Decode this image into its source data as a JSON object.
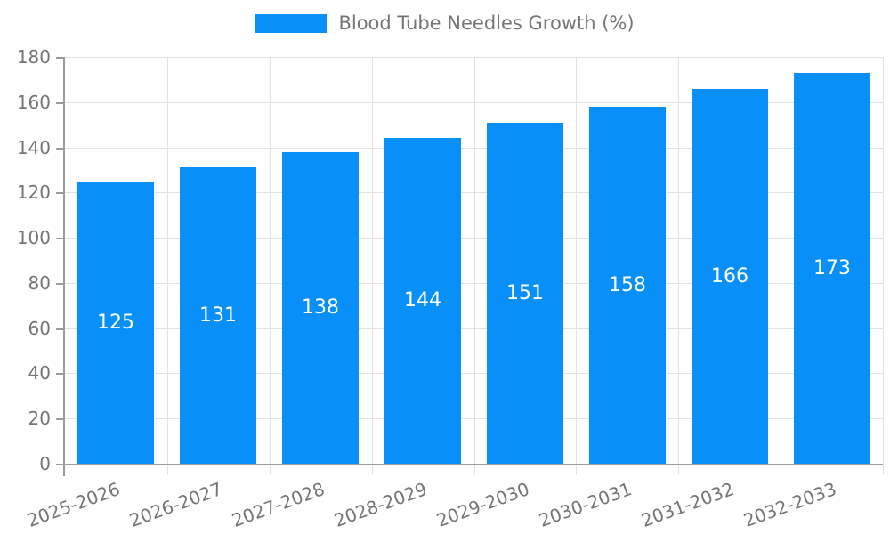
{
  "legend": {
    "label": "Blood Tube Needles Growth (%)",
    "swatch_color": "#0890f8",
    "position": "top"
  },
  "chart_data": {
    "type": "bar",
    "title": "",
    "xlabel": "",
    "ylabel": "",
    "categories": [
      "2025-2026",
      "2026-2027",
      "2027-2028",
      "2028-2029",
      "2029-2030",
      "2030-2031",
      "2031-2032",
      "2032-2033"
    ],
    "series": [
      {
        "name": "Blood Tube Needles Growth (%)",
        "values": [
          125,
          131,
          138,
          144,
          151,
          158,
          166,
          173
        ]
      }
    ],
    "value_labels_shown": true,
    "value_label_position": "center-of-bar",
    "ylim": [
      0,
      180
    ],
    "ytick_step": 20,
    "ytick_labels": [
      "0",
      "20",
      "40",
      "60",
      "80",
      "100",
      "120",
      "140",
      "160",
      "180"
    ],
    "grid": "on",
    "legend_position": "top-center",
    "x_label_rotation_deg": -20,
    "colors": {
      "bar": "#0890f8",
      "value_label": "#ffffff",
      "grid_line": "#e2e2e2",
      "axis_line": "#9b9b9b",
      "tick_label": "#757575",
      "background": "#ffffff"
    }
  }
}
